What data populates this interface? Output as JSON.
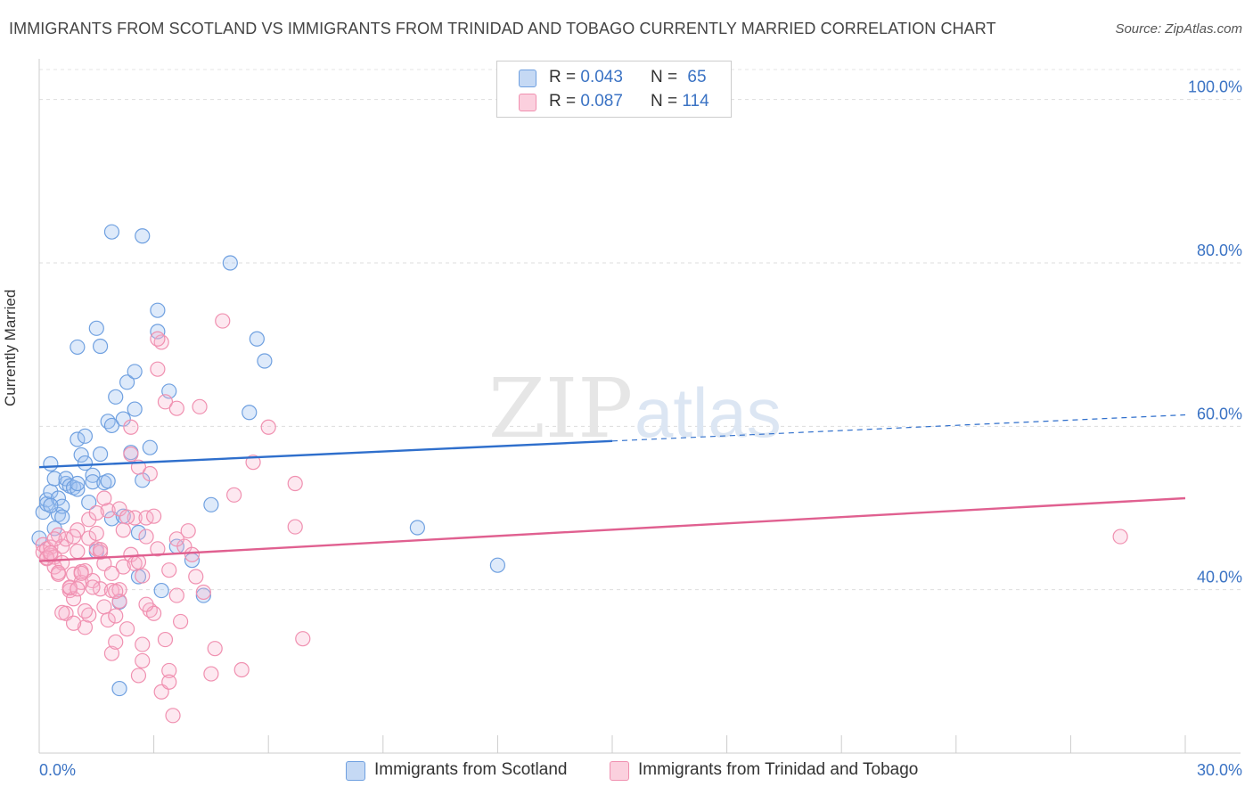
{
  "title": "IMMIGRANTS FROM SCOTLAND VS IMMIGRANTS FROM TRINIDAD AND TOBAGO CURRENTLY MARRIED CORRELATION CHART",
  "source": "Source: ZipAtlas.com",
  "watermark": {
    "zip": "ZIP",
    "atlas": "atlas"
  },
  "legend_top": [
    {
      "r_label": "R =",
      "r_value": "0.043",
      "n_label": "N =",
      "n_value": "65"
    },
    {
      "r_label": "R =",
      "r_value": "0.087",
      "n_label": "N =",
      "n_value": "114"
    }
  ],
  "chart_data": {
    "type": "scatter",
    "title": "IMMIGRANTS FROM SCOTLAND VS IMMIGRANTS FROM TRINIDAD AND TOBAGO CURRENTLY MARRIED CORRELATION CHART",
    "xlabel": "",
    "ylabel": "Currently Married",
    "xlim": [
      0,
      30
    ],
    "ylim": [
      20,
      104
    ],
    "x_ticks": [
      "0.0%",
      "30.0%"
    ],
    "y_ticks": [
      {
        "value": 100,
        "label": "100.0%"
      },
      {
        "value": 80,
        "label": "80.0%"
      },
      {
        "value": 60,
        "label": "60.0%"
      },
      {
        "value": 40,
        "label": "40.0%"
      }
    ],
    "grid": true,
    "legend_position": "bottom",
    "series": [
      {
        "name": "Immigrants from Scotland",
        "color": "#6fa0e0",
        "line_color": "#2f6fcc",
        "trend": {
          "x0": 0,
          "y0": 55.0,
          "x1": 15,
          "y1": 58.2,
          "extend_to_x": 30,
          "extend_y": 61.4
        },
        "points": [
          [
            0.1,
            49.5
          ],
          [
            0.2,
            51.0
          ],
          [
            0.2,
            50.5
          ],
          [
            0.3,
            52.0
          ],
          [
            0.3,
            55.4
          ],
          [
            0.4,
            53.6
          ],
          [
            0.5,
            49.2
          ],
          [
            0.5,
            51.2
          ],
          [
            0.6,
            50.2
          ],
          [
            0.7,
            53.0
          ],
          [
            0.7,
            53.6
          ],
          [
            0.8,
            52.7
          ],
          [
            0.9,
            52.5
          ],
          [
            1.0,
            52.3
          ],
          [
            1.0,
            58.4
          ],
          [
            1.1,
            56.5
          ],
          [
            1.2,
            55.5
          ],
          [
            1.2,
            58.8
          ],
          [
            1.3,
            50.7
          ],
          [
            1.4,
            54.0
          ],
          [
            1.4,
            53.2
          ],
          [
            1.5,
            44.7
          ],
          [
            1.5,
            72.0
          ],
          [
            1.6,
            56.6
          ],
          [
            1.7,
            53.1
          ],
          [
            1.8,
            53.3
          ],
          [
            1.8,
            60.6
          ],
          [
            1.9,
            60.1
          ],
          [
            1.9,
            48.7
          ],
          [
            2.0,
            63.6
          ],
          [
            2.2,
            49.0
          ],
          [
            2.3,
            65.4
          ],
          [
            2.4,
            56.8
          ],
          [
            2.5,
            66.7
          ],
          [
            2.5,
            62.1
          ],
          [
            2.6,
            47.0
          ],
          [
            2.7,
            53.4
          ],
          [
            2.9,
            57.4
          ],
          [
            3.1,
            71.6
          ],
          [
            3.1,
            74.2
          ],
          [
            3.4,
            64.3
          ],
          [
            3.6,
            45.3
          ],
          [
            4.0,
            43.6
          ],
          [
            4.5,
            50.4
          ],
          [
            5.0,
            80.0
          ],
          [
            5.5,
            61.7
          ],
          [
            5.7,
            70.7
          ],
          [
            5.9,
            68.0
          ],
          [
            9.9,
            47.6
          ],
          [
            12.0,
            43.0
          ],
          [
            1.9,
            83.8
          ],
          [
            2.7,
            83.3
          ],
          [
            1.0,
            69.7
          ],
          [
            1.6,
            69.8
          ],
          [
            2.2,
            60.9
          ],
          [
            1.0,
            53.0
          ],
          [
            0.6,
            48.9
          ],
          [
            0.3,
            50.3
          ],
          [
            2.1,
            38.5
          ],
          [
            2.6,
            41.6
          ],
          [
            3.2,
            39.9
          ],
          [
            4.3,
            39.3
          ],
          [
            2.1,
            27.9
          ],
          [
            0.0,
            46.3
          ],
          [
            0.4,
            47.5
          ]
        ]
      },
      {
        "name": "Immigrants from Trinidad and Tobago",
        "color": "#f090b0",
        "line_color": "#e06090",
        "trend": {
          "x0": 0,
          "y0": 43.5,
          "x1": 30,
          "y1": 51.2
        },
        "points": [
          [
            0.1,
            45.5
          ],
          [
            0.1,
            44.6
          ],
          [
            0.2,
            45.0
          ],
          [
            0.2,
            43.8
          ],
          [
            0.3,
            44.2
          ],
          [
            0.3,
            45.2
          ],
          [
            0.4,
            44.0
          ],
          [
            0.4,
            42.8
          ],
          [
            0.5,
            46.7
          ],
          [
            0.5,
            41.9
          ],
          [
            0.6,
            45.3
          ],
          [
            0.6,
            43.3
          ],
          [
            0.7,
            37.1
          ],
          [
            0.7,
            46.2
          ],
          [
            0.8,
            40.2
          ],
          [
            0.8,
            39.9
          ],
          [
            0.9,
            41.9
          ],
          [
            0.9,
            38.9
          ],
          [
            1.0,
            44.7
          ],
          [
            1.0,
            47.3
          ],
          [
            1.1,
            42.2
          ],
          [
            1.1,
            40.9
          ],
          [
            1.2,
            35.4
          ],
          [
            1.2,
            42.3
          ],
          [
            1.3,
            36.9
          ],
          [
            1.3,
            46.3
          ],
          [
            1.4,
            41.1
          ],
          [
            1.5,
            45.0
          ],
          [
            1.6,
            44.6
          ],
          [
            1.6,
            40.1
          ],
          [
            1.7,
            43.2
          ],
          [
            1.7,
            37.9
          ],
          [
            1.8,
            49.7
          ],
          [
            1.8,
            36.3
          ],
          [
            1.9,
            32.2
          ],
          [
            1.9,
            39.9
          ],
          [
            2.0,
            33.6
          ],
          [
            2.1,
            49.9
          ],
          [
            2.1,
            38.6
          ],
          [
            2.2,
            47.3
          ],
          [
            2.2,
            42.8
          ],
          [
            2.3,
            35.2
          ],
          [
            2.4,
            59.9
          ],
          [
            2.4,
            56.6
          ],
          [
            2.5,
            48.8
          ],
          [
            2.6,
            55.0
          ],
          [
            2.6,
            29.5
          ],
          [
            2.7,
            33.3
          ],
          [
            2.7,
            31.3
          ],
          [
            2.8,
            48.8
          ],
          [
            2.8,
            46.5
          ],
          [
            2.9,
            54.2
          ],
          [
            2.9,
            37.5
          ],
          [
            3.0,
            37.1
          ],
          [
            3.1,
            67.0
          ],
          [
            3.2,
            27.5
          ],
          [
            3.3,
            63.0
          ],
          [
            3.3,
            33.9
          ],
          [
            3.4,
            30.1
          ],
          [
            3.4,
            28.7
          ],
          [
            3.5,
            24.6
          ],
          [
            3.6,
            62.2
          ],
          [
            3.6,
            39.3
          ],
          [
            3.7,
            36.1
          ],
          [
            3.8,
            45.3
          ],
          [
            3.9,
            47.2
          ],
          [
            4.0,
            44.3
          ],
          [
            4.1,
            41.6
          ],
          [
            4.2,
            62.4
          ],
          [
            4.3,
            39.7
          ],
          [
            4.5,
            29.7
          ],
          [
            4.6,
            32.8
          ],
          [
            4.8,
            72.9
          ],
          [
            5.1,
            51.6
          ],
          [
            5.3,
            30.2
          ],
          [
            5.6,
            55.6
          ],
          [
            6.0,
            59.9
          ],
          [
            6.9,
            34.0
          ],
          [
            6.7,
            53.0
          ],
          [
            6.7,
            47.7
          ],
          [
            28.3,
            46.5
          ],
          [
            3.2,
            70.3
          ],
          [
            3.1,
            70.7
          ],
          [
            0.2,
            43.9
          ],
          [
            0.3,
            44.5
          ],
          [
            0.5,
            42.1
          ],
          [
            0.6,
            37.2
          ],
          [
            0.8,
            40.3
          ],
          [
            0.9,
            46.5
          ],
          [
            1.1,
            42.0
          ],
          [
            1.2,
            37.4
          ],
          [
            1.4,
            40.3
          ],
          [
            1.5,
            46.9
          ],
          [
            1.6,
            44.9
          ],
          [
            1.7,
            51.2
          ],
          [
            1.9,
            42.0
          ],
          [
            2.0,
            36.8
          ],
          [
            2.1,
            40.0
          ],
          [
            2.3,
            48.9
          ],
          [
            2.4,
            44.3
          ],
          [
            2.5,
            43.2
          ],
          [
            2.7,
            41.7
          ],
          [
            2.8,
            38.2
          ],
          [
            3.0,
            49.0
          ],
          [
            3.1,
            45.0
          ],
          [
            3.4,
            42.4
          ],
          [
            3.6,
            46.2
          ],
          [
            0.9,
            35.9
          ],
          [
            1.3,
            48.6
          ],
          [
            2.0,
            39.8
          ],
          [
            2.6,
            43.4
          ],
          [
            0.4,
            46.2
          ],
          [
            1.0,
            40.1
          ],
          [
            1.5,
            49.4
          ]
        ]
      }
    ]
  }
}
